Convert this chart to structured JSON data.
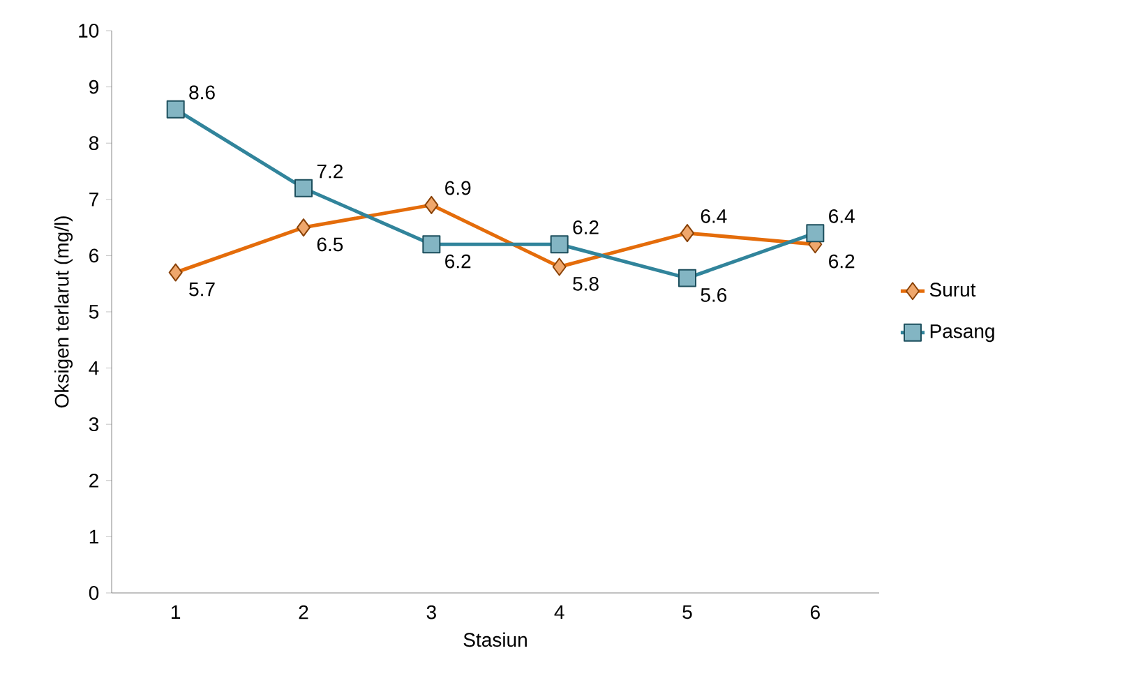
{
  "chart_data": {
    "type": "line",
    "xlabel": "Stasiun",
    "ylabel": "Oksigen terlarut (mg/l)",
    "categories": [
      "1",
      "2",
      "3",
      "4",
      "5",
      "6"
    ],
    "series": [
      {
        "name": "Surut",
        "color": "#e46c0a",
        "marker": "diamond",
        "values": [
          5.7,
          6.5,
          6.9,
          5.8,
          6.4,
          6.2
        ]
      },
      {
        "name": "Pasang",
        "color": "#31849b",
        "marker": "square",
        "values": [
          8.6,
          7.2,
          6.2,
          6.2,
          5.6,
          6.4
        ]
      }
    ],
    "ylim": [
      0,
      10
    ],
    "yticks": [
      0,
      1,
      2,
      3,
      4,
      5,
      6,
      7,
      8,
      9,
      10
    ],
    "data_labels": true,
    "legend": "right",
    "grid": false
  }
}
